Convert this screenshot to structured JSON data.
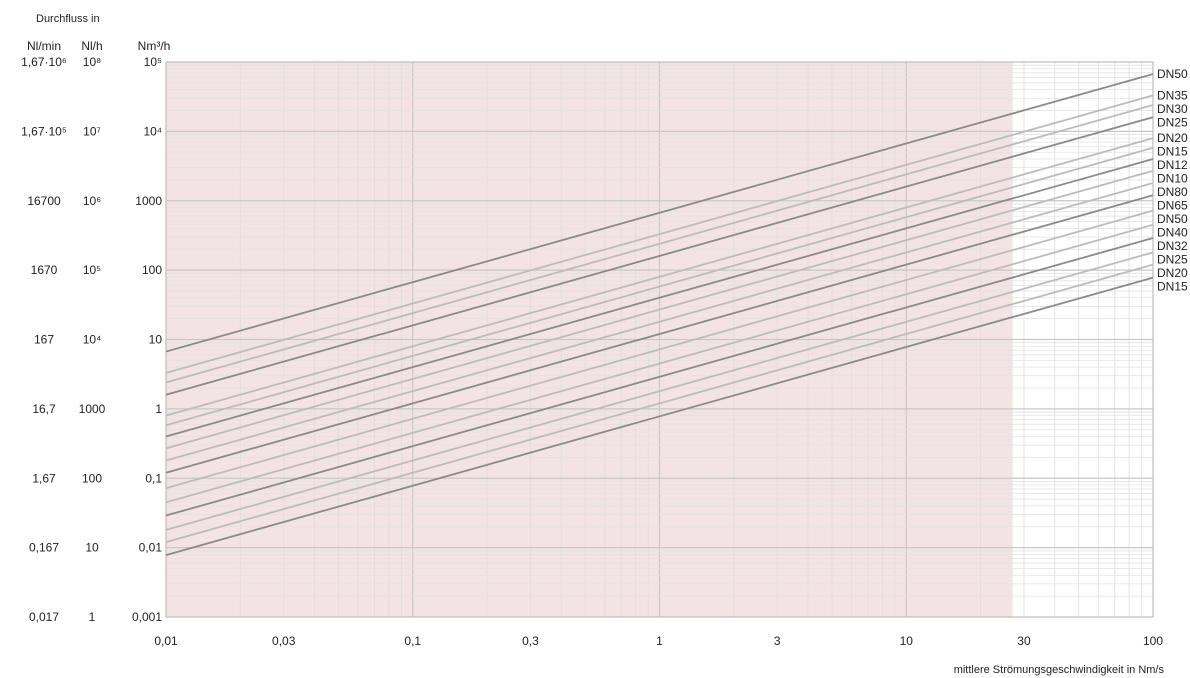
{
  "chart_data": {
    "type": "line",
    "x_scale": "log",
    "y_scale": "log",
    "xlabel": "mittlere Strömungsgeschwindigkeit in Nm/s",
    "xlim": [
      0.01,
      100
    ],
    "x_ticks": [
      {
        "value": 0.01,
        "label": "0,01"
      },
      {
        "value": 0.03,
        "label": "0,03"
      },
      {
        "value": 0.1,
        "label": "0,1"
      },
      {
        "value": 0.3,
        "label": "0,3"
      },
      {
        "value": 1,
        "label": "1"
      },
      {
        "value": 3,
        "label": "3"
      },
      {
        "value": 10,
        "label": "10"
      },
      {
        "value": 30,
        "label": "30"
      },
      {
        "value": 100,
        "label": "100"
      }
    ],
    "ylim": [
      0.001,
      100000
    ],
    "y_header": "Durchfluss in",
    "y_axes": [
      {
        "unit": "Nl/min",
        "labels": [
          "1,67·10⁶",
          "1,67·10⁵",
          "16700",
          "1670",
          "167",
          "16,7",
          "1,67",
          "0,167",
          "0,017"
        ],
        "gray": false
      },
      {
        "unit": "Nl/h",
        "labels": [
          "10⁸",
          "10⁷",
          "10⁶",
          "10⁵",
          "10⁴",
          "1000",
          "100",
          "10",
          "1"
        ],
        "gray": true
      },
      {
        "unit": "Nm³/h",
        "labels": [
          "10⁵",
          "10⁴",
          "1000",
          "100",
          "10",
          "1",
          "0,1",
          "0,01",
          "0,001"
        ],
        "gray": false
      }
    ],
    "y_tick_values": [
      100000,
      10000,
      1000,
      100,
      10,
      1,
      0.1,
      0.01,
      0.001
    ],
    "shaded_region": {
      "x_from": 0.01,
      "x_to": 27,
      "color": "#f3e3e5"
    },
    "grid": true,
    "series": [
      {
        "name": "DN50",
        "y_at_xmin": 6.7,
        "y_at_xmax": 67000,
        "color": "#8a8a8a",
        "label_color": "#222222"
      },
      {
        "name": "DN35",
        "y_at_xmin": 3.3,
        "y_at_xmax": 33000,
        "color": "#bcbcbc",
        "label_color": "#8a8a8a"
      },
      {
        "name": "DN30",
        "y_at_xmin": 2.4,
        "y_at_xmax": 24000,
        "color": "#bcbcbc",
        "label_color": "#8a8a8a"
      },
      {
        "name": "DN25",
        "y_at_xmin": 1.6,
        "y_at_xmax": 16000,
        "color": "#8a8a8a",
        "label_color": "#222222"
      },
      {
        "name": "DN20",
        "y_at_xmin": 0.8,
        "y_at_xmax": 8000,
        "color": "#bcbcbc",
        "label_color": "#8a8a8a"
      },
      {
        "name": "DN15",
        "y_at_xmin": 0.58,
        "y_at_xmax": 5800,
        "color": "#bcbcbc",
        "label_color": "#8a8a8a"
      },
      {
        "name": "DN12",
        "y_at_xmin": 0.4,
        "y_at_xmax": 4000,
        "color": "#8a8a8a",
        "label_color": "#222222"
      },
      {
        "name": "DN10",
        "y_at_xmin": 0.27,
        "y_at_xmax": 2700,
        "color": "#bcbcbc",
        "label_color": "#8a8a8a"
      },
      {
        "name": "DN80",
        "y_at_xmin": 0.18,
        "y_at_xmax": 1800,
        "color": "#bcbcbc",
        "label_color": "#8a8a8a"
      },
      {
        "name": "DN65",
        "y_at_xmin": 0.12,
        "y_at_xmax": 1200,
        "color": "#8a8a8a",
        "label_color": "#222222"
      },
      {
        "name": "DN50",
        "y_at_xmin": 0.072,
        "y_at_xmax": 720,
        "color": "#bcbcbc",
        "label_color": "#8a8a8a"
      },
      {
        "name": "DN40",
        "y_at_xmin": 0.045,
        "y_at_xmax": 450,
        "color": "#bcbcbc",
        "label_color": "#8a8a8a"
      },
      {
        "name": "DN32",
        "y_at_xmin": 0.029,
        "y_at_xmax": 290,
        "color": "#8a8a8a",
        "label_color": "#222222"
      },
      {
        "name": "DN25",
        "y_at_xmin": 0.018,
        "y_at_xmax": 180,
        "color": "#bcbcbc",
        "label_color": "#8a8a8a"
      },
      {
        "name": "DN20",
        "y_at_xmin": 0.012,
        "y_at_xmax": 120,
        "color": "#bcbcbc",
        "label_color": "#8a8a8a"
      },
      {
        "name": "DN15",
        "y_at_xmin": 0.0078,
        "y_at_xmax": 78,
        "color": "#8a8a8a",
        "label_color": "#222222"
      }
    ]
  }
}
